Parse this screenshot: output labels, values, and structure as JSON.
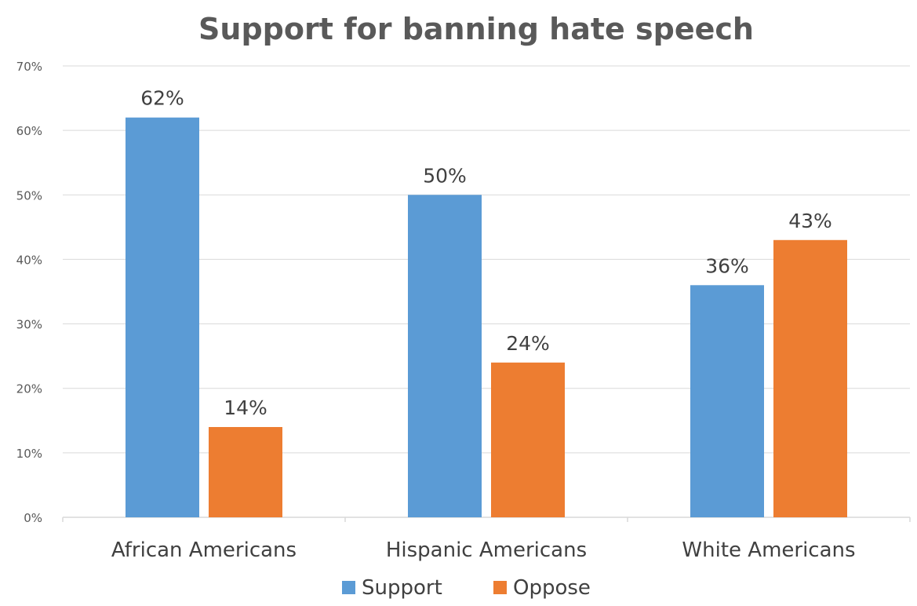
{
  "chart_data": {
    "type": "bar",
    "title": "Support for banning hate speech",
    "categories": [
      "African Americans",
      "Hispanic Americans",
      "White Americans"
    ],
    "series": [
      {
        "name": "Support",
        "values": [
          62,
          50,
          36
        ],
        "labels": [
          "62%",
          "50%",
          "36%"
        ],
        "color": "#5B9BD5"
      },
      {
        "name": "Oppose",
        "values": [
          14,
          24,
          43
        ],
        "labels": [
          "14%",
          "24%",
          "43%"
        ],
        "color": "#ED7D31"
      }
    ],
    "ylim": [
      0,
      70
    ],
    "yticks": [
      {
        "value": 0,
        "label": "0%"
      },
      {
        "value": 10,
        "label": "10%"
      },
      {
        "value": 20,
        "label": "20%"
      },
      {
        "value": 30,
        "label": "30%"
      },
      {
        "value": 40,
        "label": "40%"
      },
      {
        "value": 50,
        "label": "50%"
      },
      {
        "value": 60,
        "label": "60%"
      },
      {
        "value": 70,
        "label": "70%"
      }
    ],
    "xlabel": "",
    "ylabel": "",
    "grid": true,
    "legend_position": "bottom",
    "colors": {
      "title": "#595959",
      "text": "#404040",
      "tick": "#595959",
      "grid": "#D9D9D9",
      "axis": "#D9D9D9"
    }
  }
}
